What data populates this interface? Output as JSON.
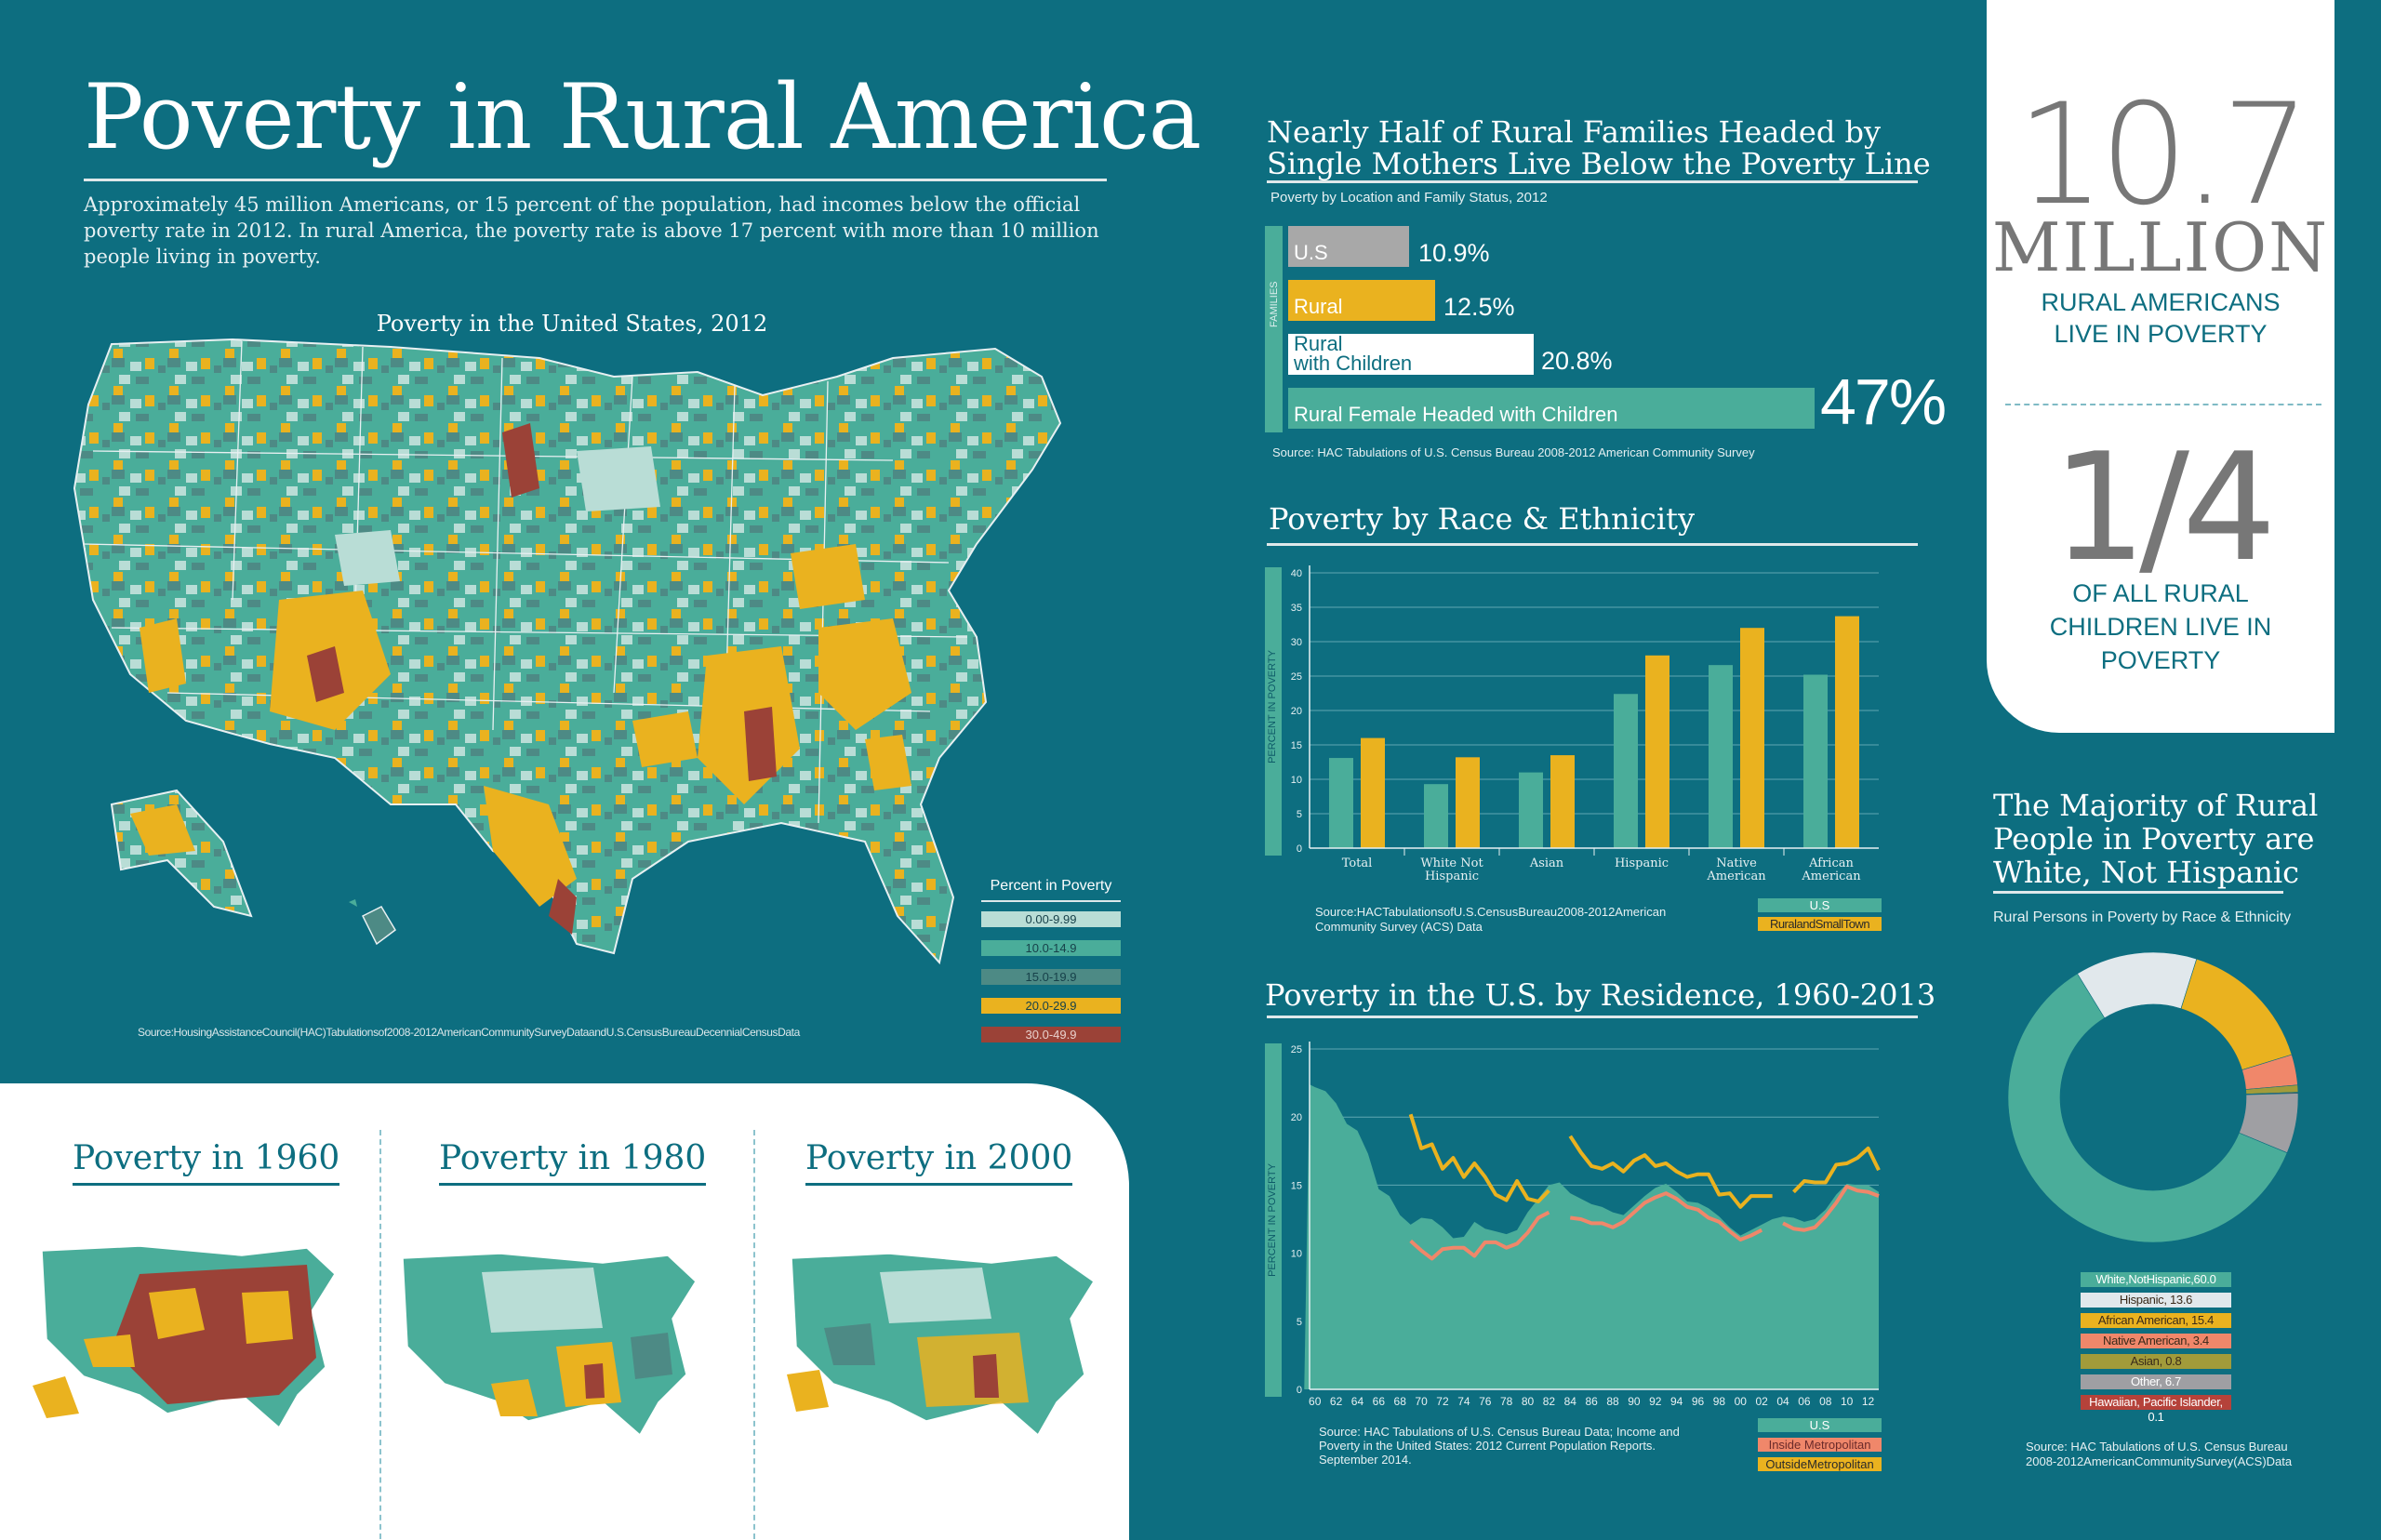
{
  "header": {
    "title": "Poverty in Rural America",
    "intro": "Approximately 45 million Americans, or 15 percent of the population, had incomes below the official poverty rate in 2012. In rural America, the poverty rate is above 17 percent with more than 10 million people living in poverty."
  },
  "map": {
    "title": "Poverty in the United States, 2012",
    "legend_title": "Percent in Poverty",
    "legend": [
      {
        "label": "0.00-9.99",
        "color": "#b9ddd6"
      },
      {
        "label": "10.0-14.9",
        "color": "#4aad9a"
      },
      {
        "label": "15.0-19.9",
        "color": "#4d8a85"
      },
      {
        "label": "20.0-29.9",
        "color": "#eab21f"
      },
      {
        "label": "30.0-49.9",
        "color": "#9b4237"
      }
    ],
    "source": "Source:HousingAssistanceCouncil(HAC)Tabulationsof2008-2012AmericanCommunitySurveyDataandU.S.CensusBureauDecennialCensusData"
  },
  "decades": [
    {
      "title": "Poverty in 1960"
    },
    {
      "title": "Poverty in 1980"
    },
    {
      "title": "Poverty in 2000"
    }
  ],
  "families": {
    "title_line1": "Nearly Half of Rural Families Headed by",
    "title_line2": "Single Mothers Live Below the Poverty Line",
    "subtitle": "Poverty by Location and Family Status, 2012",
    "axis_label": "FAMILIES",
    "bars": [
      {
        "label": "U.S",
        "value": "10.9%",
        "color": "#a8a8a8"
      },
      {
        "label": "Rural",
        "value": "12.5%",
        "color": "#eab21f"
      },
      {
        "label": "Rural with Children",
        "line1": "Rural",
        "line2": "with Children",
        "value": "20.8%",
        "color": "#ffffff"
      },
      {
        "label": "Rural Female Headed with Children",
        "value": "47%",
        "color": "#4aad9a"
      }
    ],
    "source": "Source: HAC Tabulations of U.S. Census Bureau 2008-2012 American Community Survey"
  },
  "race_chart": {
    "title": "Poverty by Race & Ethnicity",
    "source": "Source:HACTabulationsofU.S.CensusBureau2008-2012American Community Survey (ACS) Data",
    "legend": [
      {
        "label": "U.S",
        "color": "#4aad9a"
      },
      {
        "label": "RuralandSmallTown",
        "color": "#eab21f"
      }
    ]
  },
  "residence_chart": {
    "title": "Poverty in the U.S. by Residence, 1960-2013",
    "source": "Source: HAC Tabulations of U.S. Census Bureau Data; Income and Poverty in the United States: 2012 Current Population Reports. September 2014.",
    "legend": [
      {
        "label": "U.S",
        "color": "#4aad9a"
      },
      {
        "label": "Inside Metropolitan",
        "color": "#f0876a"
      },
      {
        "label": "OutsideMetropolitan",
        "color": "#eab21f"
      }
    ]
  },
  "stats": {
    "stat1_number": "10.7",
    "stat1_unit": "MILLION",
    "stat1_line1": "RURAL AMERICANS",
    "stat1_line2": "LIVE IN POVERTY",
    "stat2_number": "1/4",
    "stat2_line1": "OF ALL  RURAL",
    "stat2_line2": "CHILDREN LIVE IN",
    "stat2_line3": "POVERTY"
  },
  "donut": {
    "title_line1": "The Majority of Rural",
    "title_line2": "People in Poverty are",
    "title_line3": "White, Not Hispanic",
    "subtitle": "Rural Persons in Poverty by Race & Ethnicity",
    "source_line1": "Source: HAC Tabulations of U.S. Census Bureau",
    "source_line2": "2008-2012AmericanCommunitySurvey(ACS)Data"
  },
  "chart_data": [
    {
      "type": "bar",
      "title": "Poverty by Race & Ethnicity",
      "ylabel": "PERCENT IN POVERTY",
      "ylim": [
        0,
        40
      ],
      "yticks": [
        0,
        5,
        10,
        15,
        20,
        25,
        30,
        35,
        40
      ],
      "categories": [
        "Total",
        "White Not Hispanic",
        "Asian",
        "Hispanic",
        "Native American",
        "African American"
      ],
      "category_lines": [
        [
          "Total"
        ],
        [
          "White Not",
          "Hispanic"
        ],
        [
          "Asian"
        ],
        [
          "Hispanic"
        ],
        [
          "Native",
          "American"
        ],
        [
          "African",
          "American"
        ]
      ],
      "series": [
        {
          "name": "U.S",
          "color": "#4aad9a",
          "values": [
            13.1,
            9.3,
            11.0,
            22.4,
            26.6,
            25.2
          ]
        },
        {
          "name": "RuralandSmallTown",
          "color": "#eab21f",
          "values": [
            16.0,
            13.2,
            13.5,
            28.0,
            32.0,
            33.7
          ]
        }
      ]
    },
    {
      "type": "area",
      "title": "Poverty in the U.S. by Residence, 1960-2013",
      "ylabel": "PERCENT IN POVERTY",
      "ylim": [
        0,
        25
      ],
      "yticks": [
        0,
        5,
        10,
        15,
        20,
        25
      ],
      "xlim": [
        1959.5,
        2013
      ],
      "xticks": [
        "60",
        "62",
        "64",
        "66",
        "68",
        "70",
        "72",
        "74",
        "76",
        "78",
        "80",
        "82",
        "84",
        "86",
        "88",
        "90",
        "92",
        "94",
        "96",
        "98",
        "00",
        "02",
        "04",
        "06",
        "08",
        "10",
        "12"
      ],
      "x": [
        1959,
        1960,
        1961,
        1962,
        1963,
        1964,
        1965,
        1966,
        1967,
        1968,
        1969,
        1970,
        1971,
        1972,
        1973,
        1974,
        1975,
        1976,
        1977,
        1978,
        1979,
        1980,
        1981,
        1982,
        1983,
        1984,
        1985,
        1986,
        1987,
        1988,
        1989,
        1990,
        1991,
        1992,
        1993,
        1994,
        1995,
        1996,
        1997,
        1998,
        1999,
        2000,
        2001,
        2002,
        2003,
        2004,
        2005,
        2006,
        2007,
        2008,
        2009,
        2010,
        2011,
        2012,
        2013
      ],
      "series": [
        {
          "name": "U.S",
          "color": "#4aad9a",
          "values": [
            22.4,
            22.2,
            21.9,
            21.0,
            19.5,
            19.0,
            17.3,
            14.7,
            14.2,
            12.8,
            12.1,
            12.6,
            12.5,
            11.9,
            11.1,
            11.2,
            12.3,
            11.8,
            11.6,
            11.4,
            11.7,
            13.0,
            14.0,
            15.0,
            15.2,
            14.4,
            14.0,
            13.6,
            13.4,
            13.0,
            12.8,
            13.5,
            14.2,
            14.8,
            15.1,
            14.5,
            13.8,
            13.7,
            13.3,
            12.7,
            11.9,
            11.3,
            11.7,
            12.1,
            12.5,
            12.7,
            12.6,
            12.3,
            12.5,
            13.2,
            14.3,
            15.1,
            15.0,
            15.0,
            14.5
          ]
        },
        {
          "name": "Inside Metropolitan",
          "color": "#f0876a",
          "values": [
            null,
            null,
            null,
            null,
            null,
            null,
            null,
            null,
            null,
            null,
            10.9,
            10.2,
            9.6,
            10.3,
            10.4,
            10.4,
            9.8,
            10.8,
            10.8,
            10.4,
            10.7,
            11.5,
            12.6,
            13.0,
            null,
            12.6,
            12.5,
            12.2,
            12.2,
            11.9,
            12.3,
            13.0,
            13.7,
            14.1,
            14.4,
            14.0,
            13.4,
            13.2,
            12.6,
            12.3,
            11.6,
            11.0,
            11.3,
            11.7,
            null,
            12.2,
            11.8,
            11.7,
            11.9,
            12.7,
            13.7,
            14.9,
            14.6,
            14.5,
            14.2
          ]
        },
        {
          "name": "OutsideMetropolitan",
          "color": "#eab21f",
          "values": [
            null,
            null,
            null,
            null,
            null,
            null,
            null,
            null,
            null,
            null,
            20.2,
            17.7,
            18.0,
            16.2,
            17.0,
            15.6,
            16.6,
            15.6,
            14.3,
            13.9,
            15.3,
            14.0,
            13.8,
            14.6,
            null,
            18.6,
            17.4,
            16.4,
            16.2,
            16.6,
            16.0,
            16.8,
            17.2,
            16.4,
            16.6,
            16.0,
            15.6,
            15.8,
            15.8,
            14.3,
            14.4,
            13.4,
            14.2,
            14.2,
            14.2,
            null,
            14.5,
            15.3,
            15.2,
            15.2,
            16.5,
            16.6,
            17.0,
            17.7,
            16.1
          ]
        }
      ]
    },
    {
      "type": "pie",
      "title": "Rural Persons in Poverty by Race & Ethnicity",
      "categories": [
        "White,NotHispanic,60.0",
        "Hispanic, 13.6",
        "African American, 15.4",
        "Native American, 3.4",
        "Asian, 0.8",
        "Other, 6.7",
        "Hawaiian, Pacific Islander, 0.1"
      ],
      "values": [
        60.0,
        13.6,
        15.4,
        3.4,
        0.8,
        6.7,
        0.1
      ],
      "draw_order": [
        "Hispanic, 13.6",
        "African American, 15.4",
        "Native American, 3.4",
        "Asian, 0.8",
        "Hawaiian, Pacific Islander, 0.1",
        "Other, 6.7",
        "White,NotHispanic,60.0"
      ],
      "colors": [
        "#4aad9a",
        "#e1e8ec",
        "#eab21f",
        "#f0876a",
        "#a29b3a",
        "#9f9fa3",
        "#b5423a"
      ]
    }
  ]
}
